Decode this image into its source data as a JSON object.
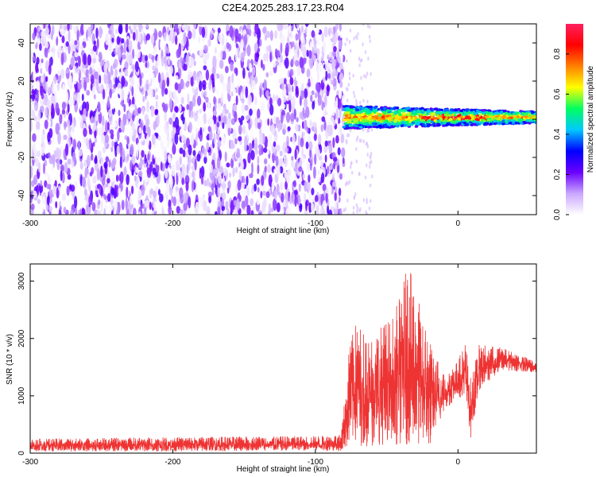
{
  "chart_data": [
    {
      "type": "heatmap",
      "title": "C2E4.2025.283.17.23.R04",
      "xlabel": "Height of straight line (km)",
      "ylabel": "Frequency (Hz)",
      "xlim": [
        -300,
        55
      ],
      "ylim": [
        -50,
        50
      ],
      "x_ticks": [
        -300,
        -200,
        -100,
        0
      ],
      "x_tick_labels": [
        "-300",
        "-200",
        "-100",
        "0"
      ],
      "y_ticks": [
        -40,
        -20,
        0,
        20,
        40
      ],
      "y_tick_labels": [
        "-40",
        "-20",
        "0",
        "20",
        "40"
      ],
      "noise_region_x": [
        -300,
        -80
      ],
      "signal_band": {
        "x_range": [
          -80,
          55
        ],
        "center_frequency_hz": 1,
        "half_width_hz_start": 6,
        "half_width_hz_end": 3,
        "peak_amplitude": 0.95
      },
      "colorbar": {
        "label": "Normalized spectral amplitude",
        "range": [
          0.0,
          0.95
        ],
        "ticks": [
          0.0,
          0.2,
          0.4,
          0.6,
          0.8
        ],
        "tick_labels": [
          "0.0",
          "0.2",
          "0.4",
          "0.6",
          "0.8"
        ],
        "colors": [
          "#ffffff",
          "#c9a6ff",
          "#6a00ff",
          "#0000ff",
          "#00c8ff",
          "#00ff60",
          "#ffff00",
          "#ff8000",
          "#ff0000",
          "#ff2060"
        ]
      }
    },
    {
      "type": "line",
      "xlabel": "Height of straight line (km)",
      "ylabel": "SNR (10 * v/v)",
      "xlim": [
        -300,
        55
      ],
      "ylim": [
        0,
        3300
      ],
      "x_ticks": [
        -300,
        -200,
        -100,
        0
      ],
      "x_tick_labels": [
        "-300",
        "-200",
        "-100",
        "0"
      ],
      "y_ticks": [
        0,
        1000,
        2000,
        3000
      ],
      "y_tick_labels": [
        "0",
        "1000",
        "2000",
        "3000"
      ],
      "color": "#ee3333",
      "envelope": [
        {
          "x": -300,
          "low": 30,
          "high": 250
        },
        {
          "x": -200,
          "low": 30,
          "high": 280
        },
        {
          "x": -100,
          "low": 40,
          "high": 300
        },
        {
          "x": -82,
          "low": 40,
          "high": 320
        },
        {
          "x": -78,
          "low": 100,
          "high": 1300
        },
        {
          "x": -75,
          "low": 150,
          "high": 2300
        },
        {
          "x": -60,
          "low": 100,
          "high": 2100
        },
        {
          "x": -45,
          "low": 150,
          "high": 2400
        },
        {
          "x": -35,
          "low": 150,
          "high": 3300
        },
        {
          "x": -20,
          "low": 100,
          "high": 2000
        },
        {
          "x": -10,
          "low": 700,
          "high": 1400
        },
        {
          "x": 0,
          "low": 1000,
          "high": 1600
        },
        {
          "x": 5,
          "low": 900,
          "high": 2000
        },
        {
          "x": 9,
          "low": 250,
          "high": 1300
        },
        {
          "x": 15,
          "low": 1100,
          "high": 1900
        },
        {
          "x": 30,
          "low": 1450,
          "high": 1850
        },
        {
          "x": 55,
          "low": 1400,
          "high": 1600
        }
      ]
    }
  ]
}
